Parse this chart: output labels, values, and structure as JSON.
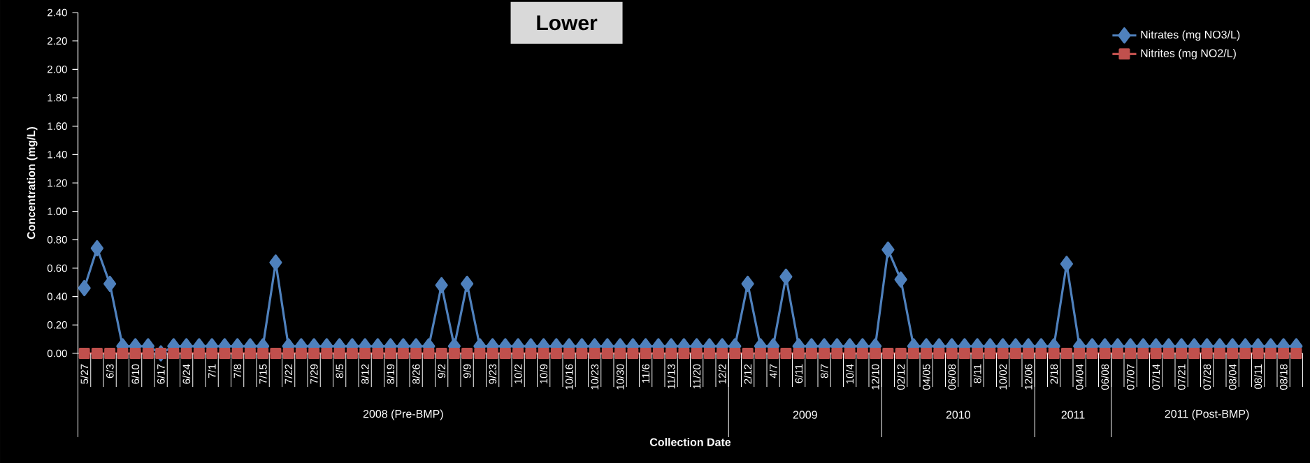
{
  "chart_data": {
    "type": "line",
    "title": "Lower",
    "xlabel": "Collection Date",
    "ylabel": "Concentration (mg/L)",
    "categories": [
      "5/27",
      null,
      "6/3",
      null,
      "6/10",
      null,
      "6/17",
      null,
      "6/24",
      null,
      "7/1",
      null,
      "7/8",
      null,
      "7/15",
      null,
      "7/22",
      null,
      "7/29",
      null,
      "8/5",
      null,
      "8/12",
      null,
      "8/19",
      null,
      "8/26",
      null,
      "9/2",
      null,
      "9/9",
      null,
      "9/23",
      null,
      "10/2",
      null,
      "10/9",
      null,
      "10/16",
      null,
      "10/23",
      null,
      "10/30",
      null,
      "11/6",
      null,
      "11/13",
      null,
      "11/20",
      null,
      "12/2",
      null,
      "2/12",
      null,
      "4/7",
      null,
      "6/11",
      null,
      "8/7",
      null,
      "10/4",
      null,
      "12/10",
      null,
      "02/12",
      null,
      "04/05",
      null,
      "06/08",
      null,
      "8/11",
      null,
      "10/02",
      null,
      "12/06",
      null,
      "2/18",
      null,
      "04/04",
      null,
      "06/08",
      null,
      "07/07",
      null,
      "07/14",
      null,
      "07/21",
      null,
      "07/28",
      null,
      "08/04",
      null,
      "08/11",
      null,
      "08/18",
      null
    ],
    "series": [
      {
        "name": "Nitrates (mg NO3/L)",
        "color": "#4f81bd",
        "marker": "diamond",
        "values": [
          0.46,
          0.74,
          0.49,
          0.05,
          0.05,
          0.05,
          0,
          0.05,
          0.05,
          0.05,
          0.05,
          0.05,
          0.05,
          0.05,
          0.05,
          0.64,
          0.05,
          0.05,
          0.05,
          0.05,
          0.05,
          0.05,
          0.05,
          0.05,
          0.05,
          0.05,
          0.05,
          0.05,
          0.48,
          0.05,
          0.49,
          0.05,
          0.05,
          0.05,
          0.05,
          0.05,
          0.05,
          0.05,
          0.05,
          0.05,
          0.05,
          0.05,
          0.05,
          0.05,
          0.05,
          0.05,
          0.05,
          0.05,
          0.05,
          0.05,
          0.05,
          0.05,
          0.49,
          0.05,
          0.05,
          0.54,
          0.05,
          0.05,
          0.05,
          0.05,
          0.05,
          0.05,
          0.05,
          0.73,
          0.52,
          0.05,
          0.05,
          0.05,
          0.05,
          0.05,
          0.05,
          0.05,
          0.05,
          0.05,
          0.05,
          0.05,
          0.05,
          0.63,
          0.05,
          0.05,
          0.05,
          0.05,
          0.05,
          0.05,
          0.05,
          0.05,
          0.05,
          0.05,
          0.05,
          0.05,
          0.05,
          0.05,
          0.05,
          0.05,
          0.05,
          0.05
        ]
      },
      {
        "name": "Nitrites (mg NO2/L)",
        "color": "#c0504d",
        "marker": "square",
        "values": [
          0,
          0,
          0,
          0,
          0,
          0,
          0,
          0,
          0,
          0,
          0,
          0,
          0,
          0,
          0,
          0,
          0,
          0,
          0,
          0,
          0,
          0,
          0,
          0,
          0,
          0,
          0,
          0,
          0,
          0,
          0,
          0,
          0,
          0,
          0,
          0,
          0,
          0,
          0,
          0,
          0,
          0,
          0,
          0,
          0,
          0,
          0,
          0,
          0,
          0,
          0,
          0,
          0,
          0,
          0,
          0,
          0,
          0,
          0,
          0,
          0,
          0,
          0,
          0,
          0,
          0,
          0,
          0,
          0,
          0,
          0,
          0,
          0,
          0,
          0,
          0,
          0,
          0,
          0,
          0,
          0,
          0,
          0,
          0,
          0,
          0,
          0,
          0,
          0,
          0,
          0,
          0,
          0,
          0,
          0,
          0
        ]
      }
    ],
    "ylim": [
      0,
      2.4
    ],
    "yticks": [
      {
        "value": 0,
        "label": "0.00"
      },
      {
        "value": 0.2,
        "label": "0.20"
      },
      {
        "value": 0.4,
        "label": "0.40"
      },
      {
        "value": 0.6,
        "label": "0.60"
      },
      {
        "value": 0.8,
        "label": "0.80"
      },
      {
        "value": 1.0,
        "label": "1.00"
      },
      {
        "value": 1.2,
        "label": "1.20"
      },
      {
        "value": 1.4,
        "label": "1.40"
      },
      {
        "value": 1.6,
        "label": "1.60"
      },
      {
        "value": 1.8,
        "label": "1.80"
      },
      {
        "value": 2.0,
        "label": "2.00"
      },
      {
        "value": 2.2,
        "label": "2.20"
      },
      {
        "value": 2.4,
        "label": "2.40"
      }
    ],
    "legend": "top right",
    "annotations": [
      "2008 (Pre-BMP)",
      "2009",
      "2010",
      "2011",
      "2011 (Post-BMP)"
    ]
  }
}
